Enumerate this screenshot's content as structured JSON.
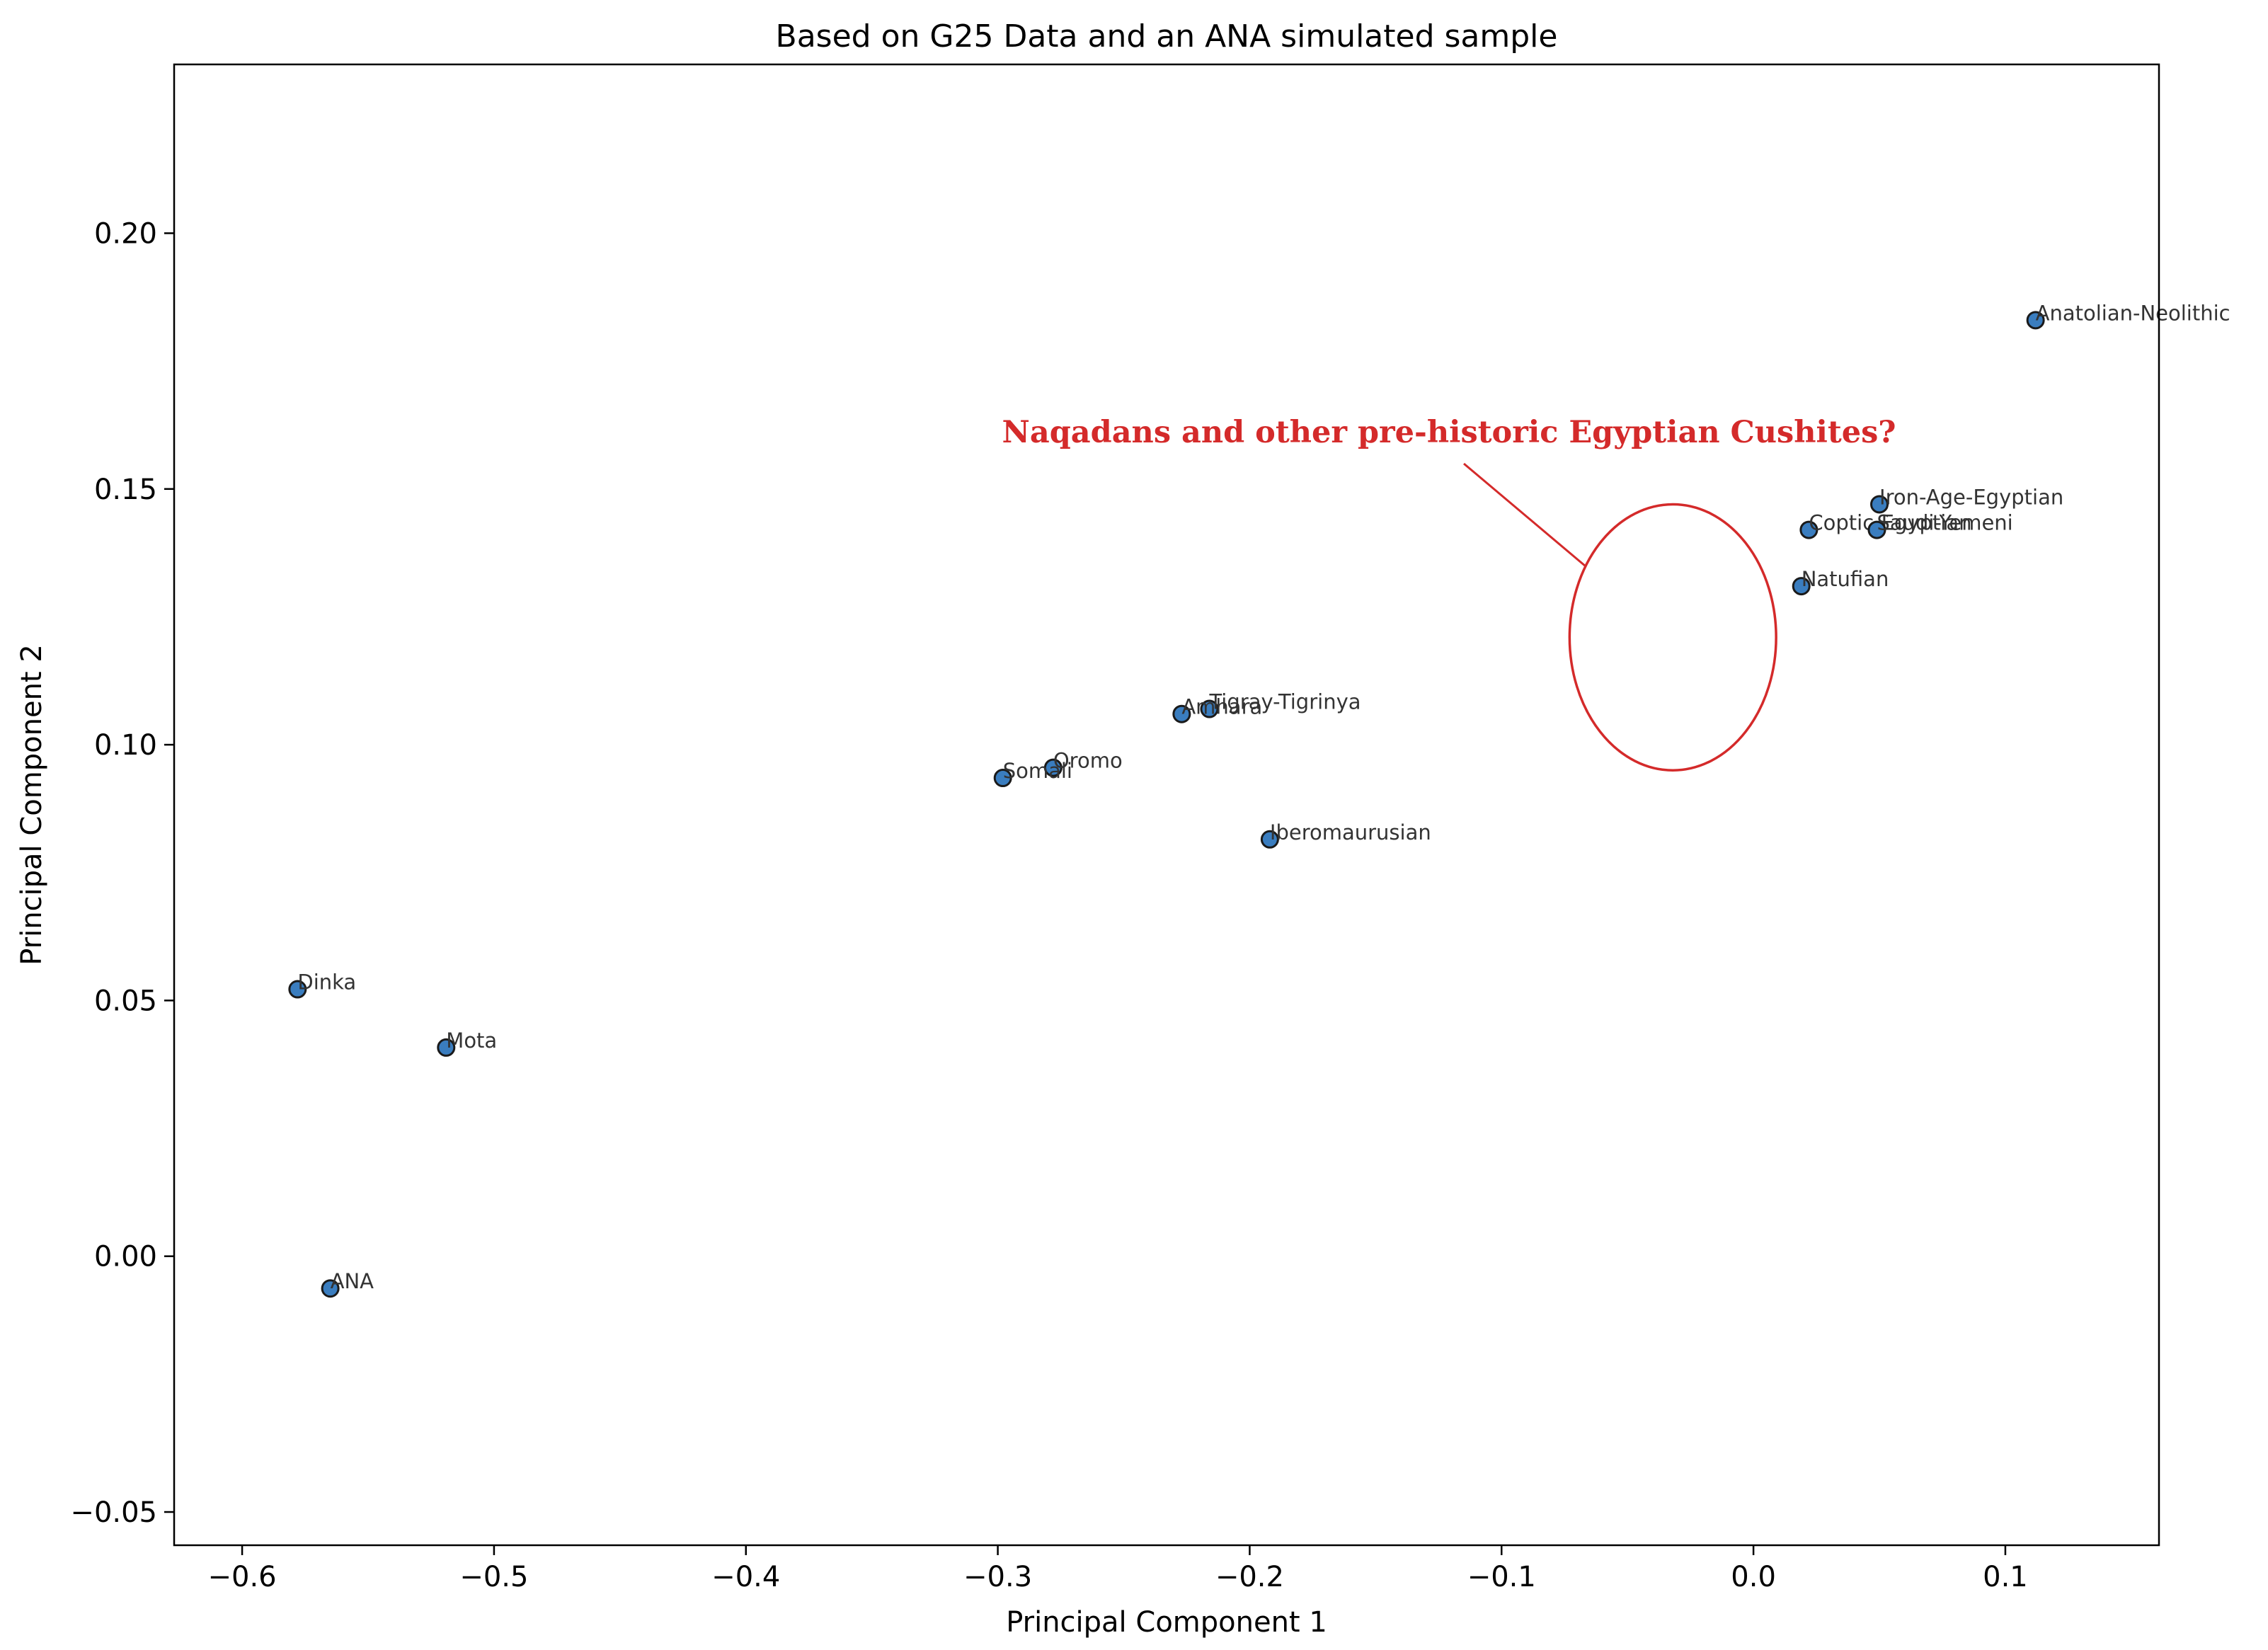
{
  "chart_data": {
    "type": "scatter",
    "title": "Based on G25 Data and an ANA simulated sample",
    "xlabel": "Principal Component 1",
    "ylabel": "Principal Component 2",
    "xlim": [
      -0.627,
      0.161
    ],
    "ylim": [
      -0.0565,
      0.233
    ],
    "xticks": [
      -0.6,
      -0.5,
      -0.4,
      -0.3,
      -0.2,
      -0.1,
      0.0,
      0.1
    ],
    "xtick_labels": [
      "−0.6",
      "−0.5",
      "−0.4",
      "−0.3",
      "−0.2",
      "−0.1",
      "0.0",
      "0.1"
    ],
    "yticks": [
      -0.05,
      0.0,
      0.05,
      0.1,
      0.15,
      0.2
    ],
    "ytick_labels": [
      "−0.05",
      "0.00",
      "0.05",
      "0.10",
      "0.15",
      "0.20"
    ],
    "grid": false,
    "marker_color": "#3a7dbf",
    "marker_edge_color": "#1a1a1a",
    "points": [
      {
        "label": "Anatolian-Neolithic",
        "x": 0.112,
        "y": 0.183
      },
      {
        "label": "Iron-Age-Egyptian",
        "x": 0.05,
        "y": 0.147
      },
      {
        "label": "Coptic-Egyptian",
        "x": 0.022,
        "y": 0.142
      },
      {
        "label": "Saudi-Yemeni",
        "x": 0.049,
        "y": 0.142
      },
      {
        "label": "Natufian",
        "x": 0.019,
        "y": 0.131
      },
      {
        "label": "Tigray-Tigrinya",
        "x": -0.216,
        "y": 0.107
      },
      {
        "label": "Amhara",
        "x": -0.227,
        "y": 0.106
      },
      {
        "label": "Oromo",
        "x": -0.278,
        "y": 0.0955
      },
      {
        "label": "Somali",
        "x": -0.298,
        "y": 0.0935
      },
      {
        "label": "Iberomaurusian",
        "x": -0.192,
        "y": 0.0815
      },
      {
        "label": "Dinka",
        "x": -0.578,
        "y": 0.0522
      },
      {
        "label": "Mota",
        "x": -0.519,
        "y": 0.0408
      },
      {
        "label": "ANA",
        "x": -0.565,
        "y": -0.0063
      }
    ],
    "annotation": {
      "text": "Naqadans and other pre-historic Egyptian Cushites?",
      "color": "#d42a2a",
      "ellipse_center": [
        -0.032,
        0.121
      ],
      "ellipse_radius": [
        0.041,
        0.026
      ]
    }
  }
}
